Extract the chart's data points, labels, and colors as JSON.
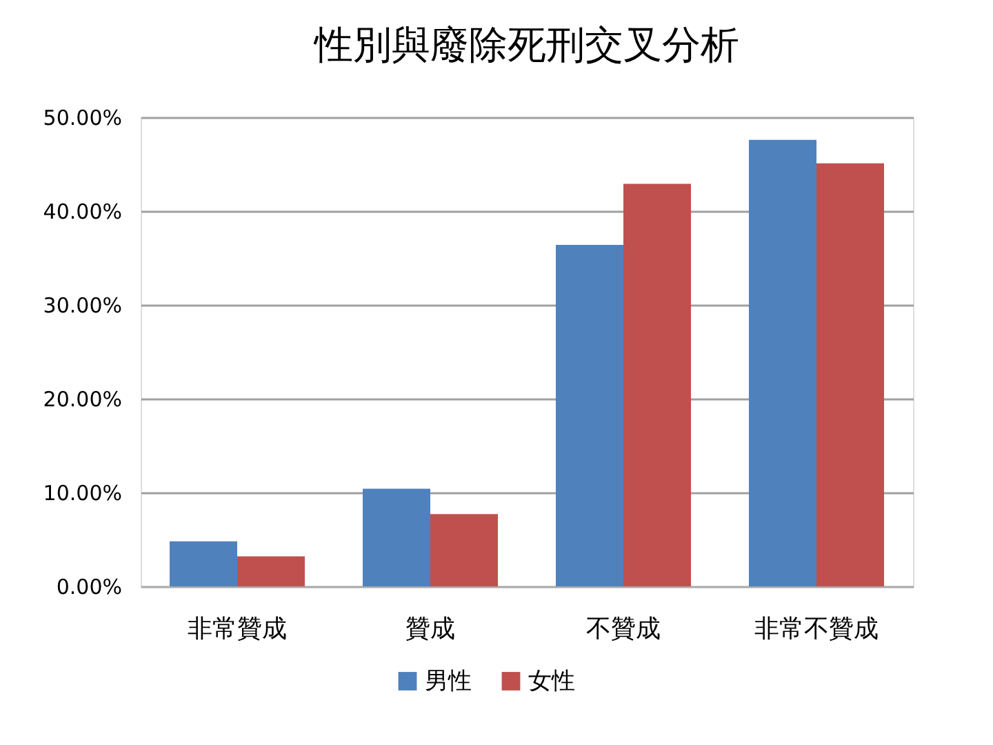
{
  "chart_data": {
    "type": "bar",
    "title": "性別與廢除死刑交叉分析",
    "categories": [
      "非常贊成",
      "贊成",
      "不贊成",
      "非常不贊成"
    ],
    "series": [
      {
        "name": "男性",
        "color": "#4f81bd",
        "values": [
          4.8,
          10.4,
          36.4,
          47.6
        ]
      },
      {
        "name": "女性",
        "color": "#c0504d",
        "values": [
          3.2,
          7.7,
          42.9,
          45.1
        ]
      }
    ],
    "ylim": [
      0,
      50
    ],
    "yticks": [
      {
        "value": 0,
        "label": "0.00%"
      },
      {
        "value": 10,
        "label": "10.00%"
      },
      {
        "value": 20,
        "label": "20.00%"
      },
      {
        "value": 30,
        "label": "30.00%"
      },
      {
        "value": 40,
        "label": "40.00%"
      },
      {
        "value": 50,
        "label": "50.00%"
      }
    ],
    "grid": "y",
    "legend": "bottom"
  }
}
